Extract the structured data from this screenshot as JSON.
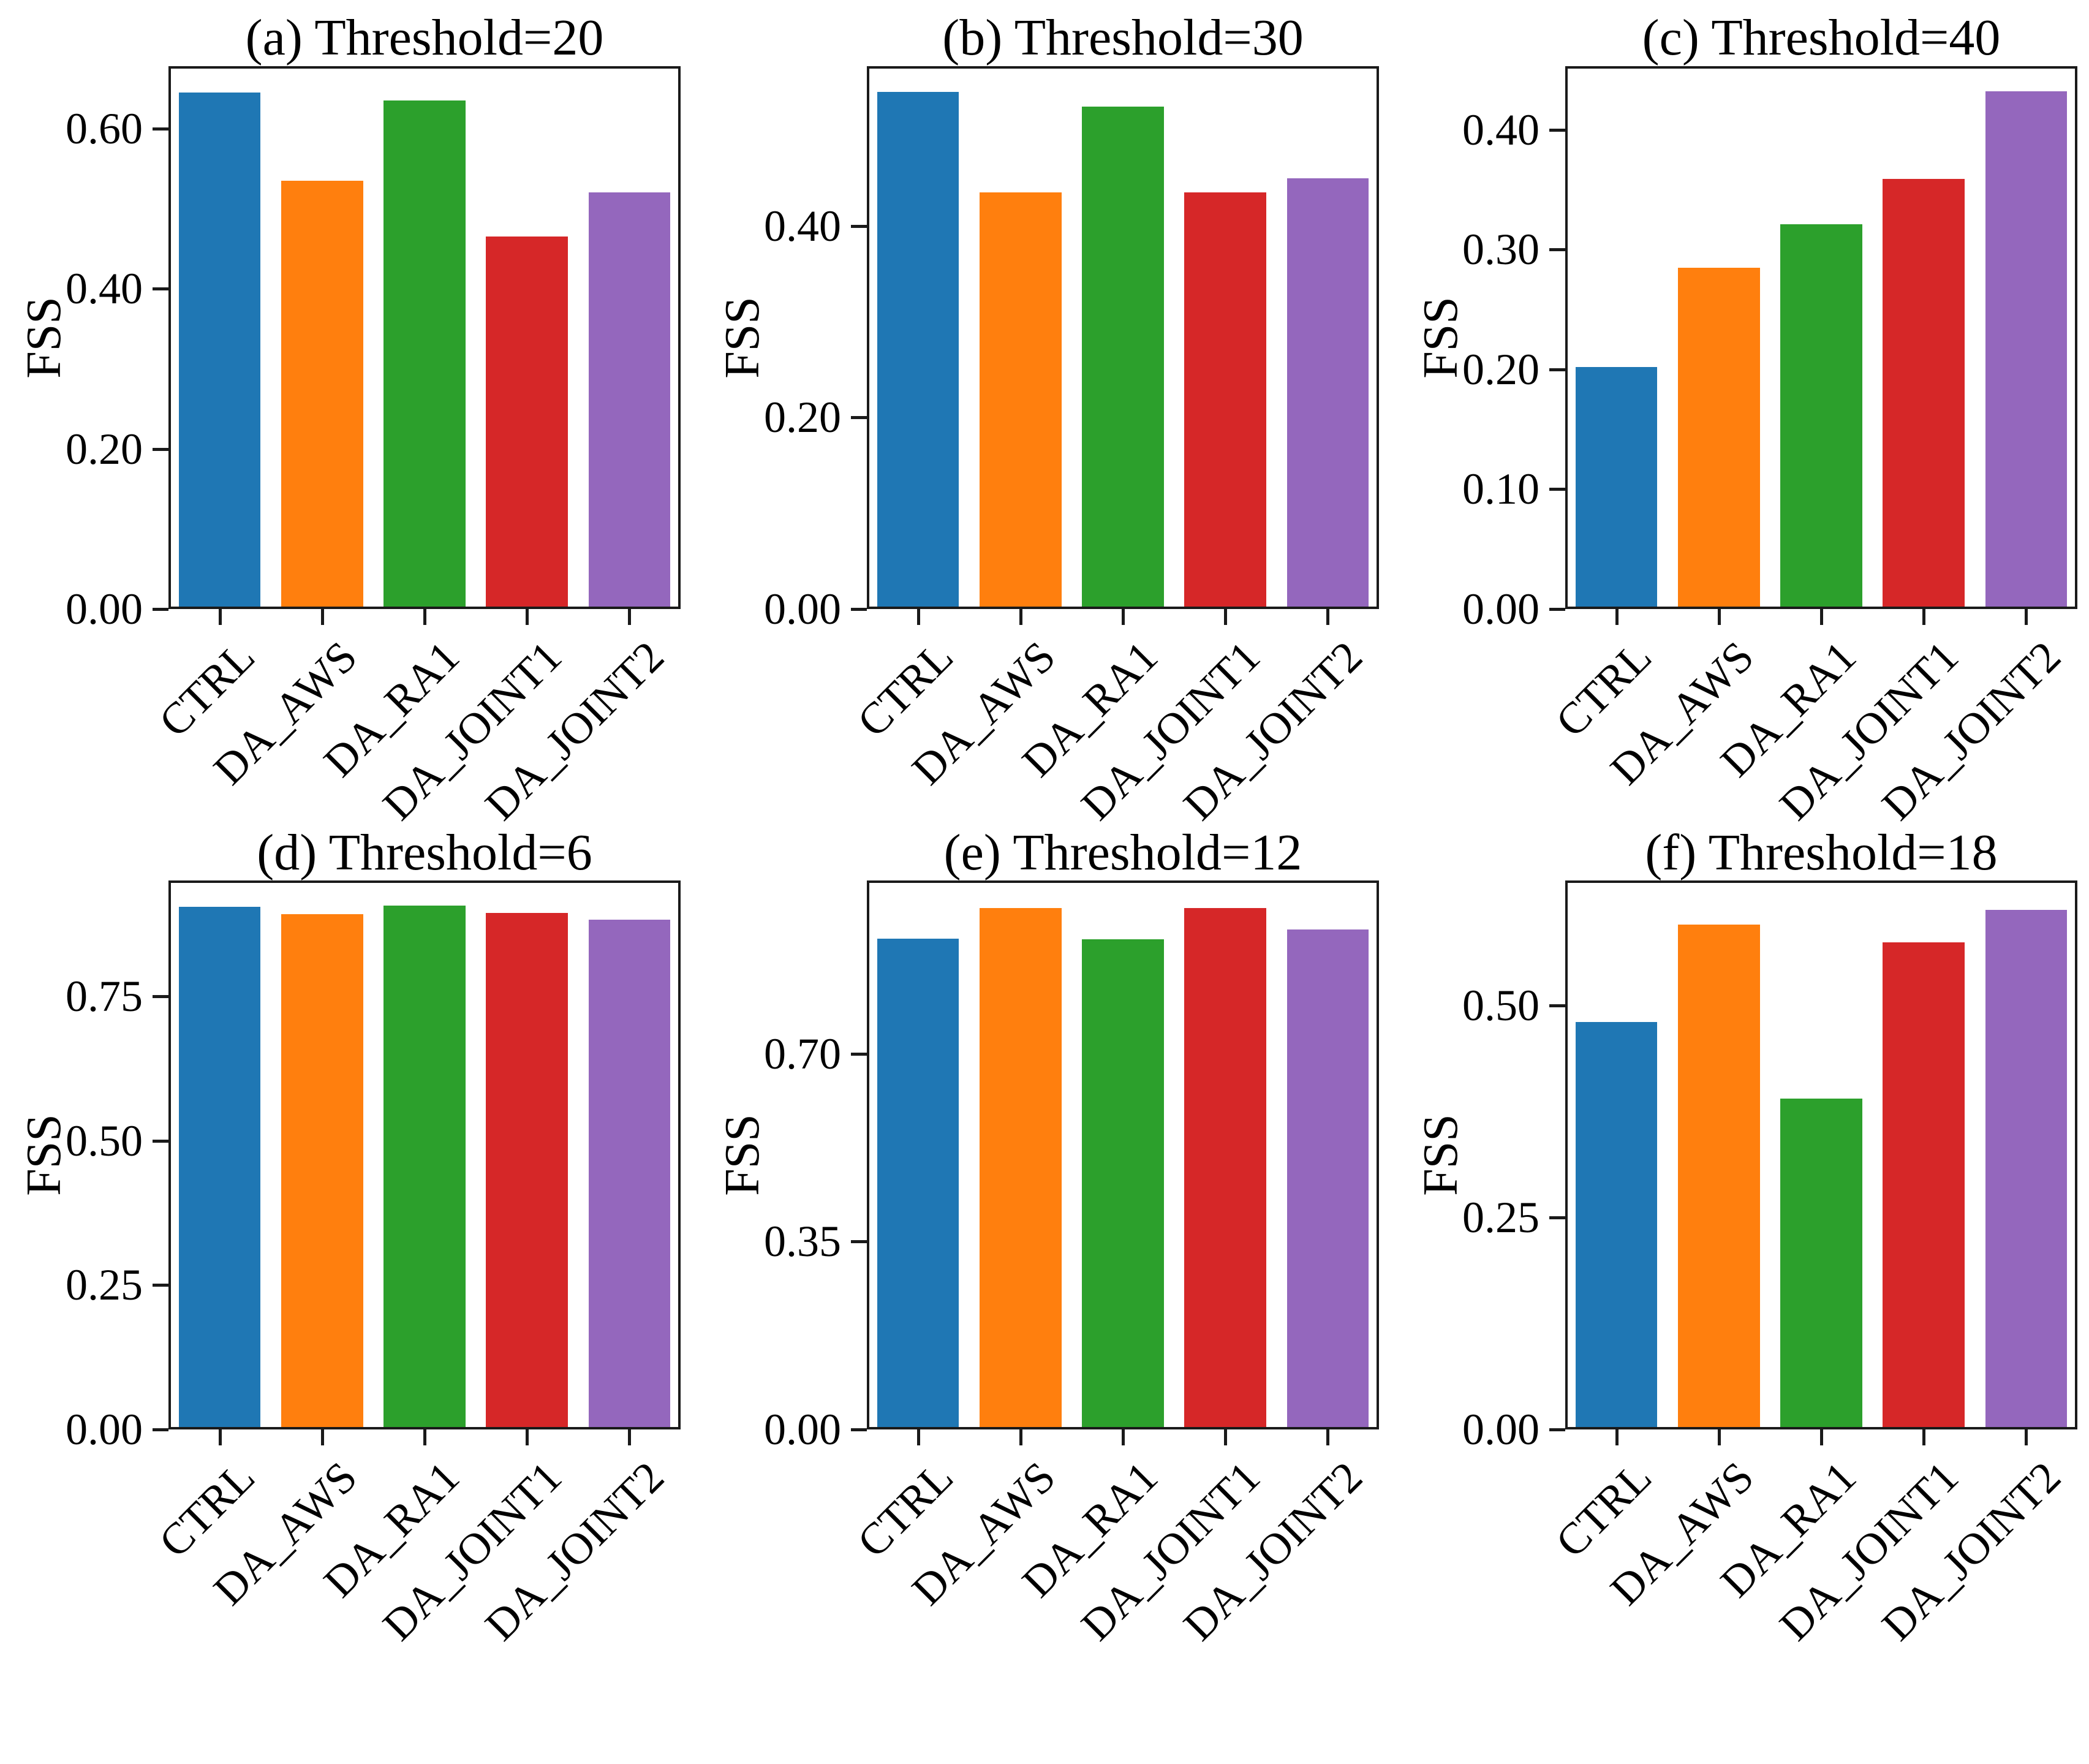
{
  "figure": {
    "ylabel": "FSS",
    "categories": [
      "CTRL",
      "DA_AWS",
      "DA_RA1",
      "DA_JOINT1",
      "DA_JOINT2"
    ],
    "bar_colors": [
      "#1f77b4",
      "#ff7f0e",
      "#2ca02c",
      "#d62728",
      "#9467bd"
    ],
    "axis_color": "#1a1a1a",
    "background_color": "#ffffff"
  },
  "chart_data": [
    {
      "type": "bar",
      "title": "(a) Threshold=20",
      "ylabel": "FSS",
      "xlabel": "",
      "categories": [
        "CTRL",
        "DA_AWS",
        "DA_RA1",
        "DA_JOINT1",
        "DA_JOINT2"
      ],
      "values": [
        0.645,
        0.535,
        0.635,
        0.465,
        0.52
      ],
      "colors": [
        "#1f77b4",
        "#ff7f0e",
        "#2ca02c",
        "#d62728",
        "#9467bd"
      ],
      "yticks": [
        "0.00",
        "0.20",
        "0.40",
        "0.60"
      ],
      "ylim": [
        0,
        0.678
      ],
      "grid": false,
      "legend": false
    },
    {
      "type": "bar",
      "title": "(b) Threshold=30",
      "ylabel": "FSS",
      "xlabel": "",
      "categories": [
        "CTRL",
        "DA_AWS",
        "DA_RA1",
        "DA_JOINT1",
        "DA_JOINT2"
      ],
      "values": [
        0.54,
        0.435,
        0.525,
        0.435,
        0.45
      ],
      "colors": [
        "#1f77b4",
        "#ff7f0e",
        "#2ca02c",
        "#d62728",
        "#9467bd"
      ],
      "yticks": [
        "0.00",
        "0.20",
        "0.40"
      ],
      "ylim": [
        0,
        0.567
      ],
      "grid": false,
      "legend": false
    },
    {
      "type": "bar",
      "title": "(c) Threshold=40",
      "ylabel": "FSS",
      "xlabel": "",
      "categories": [
        "CTRL",
        "DA_AWS",
        "DA_RA1",
        "DA_JOINT1",
        "DA_JOINT2"
      ],
      "values": [
        0.202,
        0.285,
        0.321,
        0.359,
        0.432
      ],
      "colors": [
        "#1f77b4",
        "#ff7f0e",
        "#2ca02c",
        "#d62728",
        "#9467bd"
      ],
      "yticks": [
        "0.00",
        "0.10",
        "0.20",
        "0.30",
        "0.40"
      ],
      "ylim": [
        0,
        0.453
      ],
      "grid": false,
      "legend": false
    },
    {
      "type": "bar",
      "title": "(d) Threshold=6",
      "ylabel": "FSS",
      "xlabel": "",
      "categories": [
        "CTRL",
        "DA_AWS",
        "DA_RA1",
        "DA_JOINT1",
        "DA_JOINT2"
      ],
      "values": [
        0.905,
        0.893,
        0.907,
        0.895,
        0.883
      ],
      "colors": [
        "#1f77b4",
        "#ff7f0e",
        "#2ca02c",
        "#d62728",
        "#9467bd"
      ],
      "yticks": [
        "0.00",
        "0.25",
        "0.50",
        "0.75"
      ],
      "ylim": [
        0,
        0.951
      ],
      "grid": false,
      "legend": false
    },
    {
      "type": "bar",
      "title": "(e) Threshold=12",
      "ylabel": "FSS",
      "xlabel": "",
      "categories": [
        "CTRL",
        "DA_AWS",
        "DA_RA1",
        "DA_JOINT1",
        "DA_JOINT2"
      ],
      "values": [
        0.915,
        0.972,
        0.913,
        0.972,
        0.932
      ],
      "colors": [
        "#1f77b4",
        "#ff7f0e",
        "#2ca02c",
        "#d62728",
        "#9467bd"
      ],
      "yticks": [
        "0.00",
        "0.35",
        "0.70"
      ],
      "ylim": [
        0,
        1.023
      ],
      "grid": false,
      "legend": false
    },
    {
      "type": "bar",
      "title": "(f) Threshold=18",
      "ylabel": "FSS",
      "xlabel": "",
      "categories": [
        "CTRL",
        "DA_AWS",
        "DA_RA1",
        "DA_JOINT1",
        "DA_JOINT2"
      ],
      "values": [
        0.48,
        0.595,
        0.39,
        0.574,
        0.612
      ],
      "colors": [
        "#1f77b4",
        "#ff7f0e",
        "#2ca02c",
        "#d62728",
        "#9467bd"
      ],
      "yticks": [
        "0.00",
        "0.25",
        "0.50"
      ],
      "ylim": [
        0,
        0.647
      ],
      "grid": false,
      "legend": false
    }
  ]
}
